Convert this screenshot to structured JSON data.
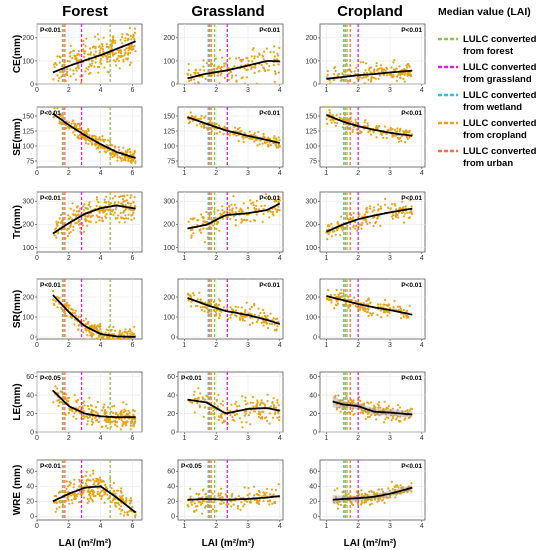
{
  "figure": {
    "columns": [
      "Forest",
      "Grassland",
      "Cropland"
    ],
    "xlabel": "LAI (m²/m²)",
    "legend": {
      "title": "Median value (LAI)",
      "entries": [
        {
          "line1": "LULC converted",
          "line2": "from forest",
          "color": "#8dc63f"
        },
        {
          "line1": "LULC converted",
          "line2": "from grassland",
          "color": "#e020e0"
        },
        {
          "line1": "LULC converted",
          "line2": "from wetland",
          "color": "#27c3e6"
        },
        {
          "line1": "LULC converted",
          "line2": "from cropland",
          "color": "#f0a020"
        },
        {
          "line1": "LULC converted",
          "line2": "from urban",
          "color": "#ff6a4a"
        }
      ]
    },
    "point_color": "#e8a317",
    "fit_color": "#000000"
  },
  "chart_data": [
    {
      "type": "scatter",
      "row": "CE(mm)",
      "column": "Forest",
      "p_text": "P<0.01",
      "xlim": [
        0,
        6.6
      ],
      "ylim": [
        0,
        260
      ],
      "xticks": [
        0,
        2,
        4,
        6
      ],
      "yticks": [
        0,
        100,
        200
      ],
      "fit": {
        "x": [
          1,
          2,
          3,
          4,
          5,
          6.2
        ],
        "y": [
          50,
          78,
          102,
          125,
          152,
          185
        ]
      },
      "spread": 40,
      "medians": {
        "forest": 4.6,
        "grassland": 2.8,
        "wetland": 1.6,
        "cropland": 1.65,
        "urban": 1.75
      }
    },
    {
      "type": "scatter",
      "row": "CE(mm)",
      "column": "Grassland",
      "p_text": "P<0.01",
      "xlim": [
        0.8,
        4.1
      ],
      "ylim": [
        0,
        260
      ],
      "xticks": [
        1,
        2,
        3,
        4
      ],
      "yticks": [
        0,
        100,
        200
      ],
      "fit": {
        "x": [
          1.1,
          1.7,
          2.3,
          3,
          3.6,
          4
        ],
        "y": [
          25,
          45,
          58,
          80,
          100,
          98
        ]
      },
      "spread": 35,
      "medians": {
        "forest": 1.95,
        "grassland": 2.35,
        "wetland": 1.75,
        "cropland": 1.85,
        "urban": 1.8
      }
    },
    {
      "type": "scatter",
      "row": "CE(mm)",
      "column": "Cropland",
      "p_text": "P<0.01",
      "xlim": [
        0.8,
        4.1
      ],
      "ylim": [
        0,
        260
      ],
      "xticks": [
        1,
        2,
        3,
        4
      ],
      "yticks": [
        0,
        100,
        200
      ],
      "fit": {
        "x": [
          1,
          1.5,
          2,
          2.5,
          3,
          3.7
        ],
        "y": [
          22,
          30,
          38,
          43,
          50,
          58
        ]
      },
      "spread": 22,
      "medians": {
        "forest": 1.65,
        "grassland": 2,
        "wetland": 1.55,
        "cropland": 1.6,
        "urban": 1.75
      }
    },
    {
      "type": "scatter",
      "row": "SE(mm)",
      "column": "Forest",
      "p_text": "P<0.01",
      "xlim": [
        0,
        6.6
      ],
      "ylim": [
        65,
        165
      ],
      "xticks": [
        0,
        2,
        4,
        6
      ],
      "yticks": [
        75,
        100,
        125,
        150
      ],
      "fit": {
        "x": [
          1,
          2,
          3,
          4,
          5,
          6.2
        ],
        "y": [
          154,
          135,
          118,
          103,
          90,
          80
        ]
      },
      "spread": 6,
      "medians": {
        "forest": 4.6,
        "grassland": 2.8,
        "wetland": 1.6,
        "cropland": 1.65,
        "urban": 1.75
      }
    },
    {
      "type": "scatter",
      "row": "SE(mm)",
      "column": "Grassland",
      "p_text": "P<0.01",
      "xlim": [
        0.8,
        4.1
      ],
      "ylim": [
        65,
        165
      ],
      "xticks": [
        1,
        2,
        3,
        4
      ],
      "yticks": [
        75,
        100,
        125,
        150
      ],
      "fit": {
        "x": [
          1.1,
          1.7,
          2.3,
          3,
          3.6,
          4
        ],
        "y": [
          148,
          137,
          126,
          117,
          110,
          105
        ]
      },
      "spread": 6,
      "medians": {
        "forest": 1.95,
        "grassland": 2.35,
        "wetland": 1.75,
        "cropland": 1.85,
        "urban": 1.8
      }
    },
    {
      "type": "scatter",
      "row": "SE(mm)",
      "column": "Cropland",
      "p_text": "P<0.01",
      "xlim": [
        0.8,
        4.1
      ],
      "ylim": [
        65,
        165
      ],
      "xticks": [
        1,
        2,
        3,
        4
      ],
      "yticks": [
        75,
        100,
        125,
        150
      ],
      "fit": {
        "x": [
          1,
          1.5,
          2,
          2.5,
          3,
          3.7
        ],
        "y": [
          152,
          141,
          133,
          127,
          122,
          117
        ]
      },
      "spread": 6,
      "medians": {
        "forest": 1.65,
        "grassland": 2,
        "wetland": 1.55,
        "cropland": 1.6,
        "urban": 1.75
      }
    },
    {
      "type": "scatter",
      "row": "Tr(mm)",
      "column": "Forest",
      "p_text": "P<0.01",
      "xlim": [
        0,
        6.6
      ],
      "ylim": [
        80,
        340
      ],
      "xticks": [
        0,
        2,
        4,
        6
      ],
      "yticks": [
        100,
        200,
        300
      ],
      "fit": {
        "x": [
          1,
          2,
          3,
          4,
          5,
          6.2
        ],
        "y": [
          160,
          205,
          245,
          270,
          282,
          268
        ]
      },
      "spread": 30,
      "medians": {
        "forest": 4.6,
        "grassland": 2.8,
        "wetland": 1.6,
        "cropland": 1.65,
        "urban": 1.75
      }
    },
    {
      "type": "scatter",
      "row": "Tr(mm)",
      "column": "Grassland",
      "p_text": "P<0.01",
      "xlim": [
        0.8,
        4.1
      ],
      "ylim": [
        80,
        340
      ],
      "xticks": [
        1,
        2,
        3,
        4
      ],
      "yticks": [
        100,
        200,
        300
      ],
      "fit": {
        "x": [
          1.1,
          1.7,
          2.3,
          3,
          3.6,
          4
        ],
        "y": [
          182,
          198,
          240,
          248,
          262,
          290
        ]
      },
      "spread": 28,
      "medians": {
        "forest": 1.95,
        "grassland": 2.35,
        "wetland": 1.75,
        "cropland": 1.85,
        "urban": 1.8
      }
    },
    {
      "type": "scatter",
      "row": "Tr(mm)",
      "column": "Cropland",
      "p_text": "P<0.01",
      "xlim": [
        0.8,
        4.1
      ],
      "ylim": [
        80,
        340
      ],
      "xticks": [
        1,
        2,
        3,
        4
      ],
      "yticks": [
        100,
        200,
        300
      ],
      "fit": {
        "x": [
          1,
          1.5,
          2,
          2.5,
          3,
          3.7
        ],
        "y": [
          168,
          198,
          222,
          238,
          252,
          268
        ]
      },
      "spread": 22,
      "medians": {
        "forest": 1.65,
        "grassland": 2,
        "wetland": 1.55,
        "cropland": 1.6,
        "urban": 1.75
      }
    },
    {
      "type": "scatter",
      "row": "SR(mm)",
      "column": "Forest",
      "p_text": "P<0.01",
      "xlim": [
        0,
        6.6
      ],
      "ylim": [
        -10,
        290
      ],
      "xticks": [
        0,
        2,
        4,
        6
      ],
      "yticks": [
        0,
        100,
        200
      ],
      "fit": {
        "x": [
          1,
          2,
          3,
          4,
          5,
          6.2
        ],
        "y": [
          210,
          125,
          55,
          15,
          3,
          0
        ]
      },
      "spread": 22,
      "medians": {
        "forest": 4.6,
        "grassland": 2.8,
        "wetland": 1.6,
        "cropland": 1.65,
        "urban": 1.75
      }
    },
    {
      "type": "scatter",
      "row": "SR(mm)",
      "column": "Grassland",
      "p_text": "P<0.01",
      "xlim": [
        0.8,
        4.1
      ],
      "ylim": [
        -10,
        290
      ],
      "xticks": [
        1,
        2,
        3,
        4
      ],
      "yticks": [
        0,
        100,
        200
      ],
      "fit": {
        "x": [
          1.1,
          1.7,
          2.3,
          3,
          3.6,
          4
        ],
        "y": [
          195,
          160,
          130,
          110,
          85,
          65
        ]
      },
      "spread": 22,
      "medians": {
        "forest": 1.95,
        "grassland": 2.35,
        "wetland": 1.75,
        "cropland": 1.85,
        "urban": 1.8
      }
    },
    {
      "type": "scatter",
      "row": "SR(mm)",
      "column": "Cropland",
      "p_text": "P<0.01",
      "xlim": [
        0.8,
        4.1
      ],
      "ylim": [
        -10,
        290
      ],
      "xticks": [
        1,
        2,
        3,
        4
      ],
      "yticks": [
        0,
        100,
        200
      ],
      "fit": {
        "x": [
          1,
          1.5,
          2,
          2.5,
          3,
          3.7
        ],
        "y": [
          205,
          185,
          165,
          148,
          135,
          112
        ]
      },
      "spread": 22,
      "medians": {
        "forest": 1.65,
        "grassland": 2,
        "wetland": 1.55,
        "cropland": 1.6,
        "urban": 1.75
      }
    },
    {
      "type": "scatter",
      "row": "LE(mm)",
      "column": "Forest",
      "p_text": "P<0.05",
      "xlim": [
        0,
        6.6
      ],
      "ylim": [
        0,
        65
      ],
      "xticks": [
        0,
        2,
        4,
        6
      ],
      "yticks": [
        0,
        20,
        40,
        60
      ],
      "fit": {
        "x": [
          1,
          2,
          3,
          4,
          5,
          6.2
        ],
        "y": [
          45,
          28,
          20,
          17,
          16,
          16
        ]
      },
      "spread": 6,
      "medians": {
        "forest": 4.6,
        "grassland": 2.8,
        "wetland": 1.6,
        "cropland": 1.65,
        "urban": 1.75
      }
    },
    {
      "type": "scatter",
      "row": "LE(mm)",
      "column": "Grassland",
      "p_text": "P<0.01",
      "xlim": [
        0.8,
        4.1
      ],
      "ylim": [
        0,
        65
      ],
      "xticks": [
        1,
        2,
        3,
        4
      ],
      "yticks": [
        0,
        20,
        40,
        60
      ],
      "fit": {
        "x": [
          1.1,
          1.7,
          2.3,
          3,
          3.6,
          4
        ],
        "y": [
          35,
          32,
          20,
          25,
          26,
          23
        ]
      },
      "spread": 7,
      "medians": {
        "forest": 1.95,
        "grassland": 2.35,
        "wetland": 1.75,
        "cropland": 1.85,
        "urban": 1.8
      }
    },
    {
      "type": "scatter",
      "row": "LE(mm)",
      "column": "Cropland",
      "p_text": "P<0.01",
      "xlim": [
        0.8,
        4.1
      ],
      "ylim": [
        0,
        65
      ],
      "xticks": [
        1,
        2,
        3,
        4
      ],
      "yticks": [
        0,
        20,
        40,
        60
      ],
      "fit": {
        "x": [
          1.2,
          1.5,
          2,
          2.5,
          3,
          3.7
        ],
        "y": [
          33,
          30,
          28,
          22,
          21,
          19
        ]
      },
      "spread": 5,
      "band": true,
      "medians": {
        "forest": 1.65,
        "grassland": 2,
        "wetland": 1.55,
        "cropland": 1.6,
        "urban": 1.75
      }
    },
    {
      "type": "scatter",
      "row": "WRE (mm)",
      "column": "Forest",
      "p_text": "P<0.01",
      "xlim": [
        0,
        6.6
      ],
      "ylim": [
        -5,
        75
      ],
      "xticks": [
        0,
        2,
        4,
        6
      ],
      "yticks": [
        0,
        20,
        40,
        60
      ],
      "fit": {
        "x": [
          1,
          2,
          3,
          4,
          5,
          6.2
        ],
        "y": [
          20,
          30,
          38,
          40,
          25,
          5
        ]
      },
      "spread": 9,
      "medians": {
        "forest": 4.6,
        "grassland": 2.8,
        "wetland": 1.6,
        "cropland": 1.65,
        "urban": 1.75
      }
    },
    {
      "type": "scatter",
      "row": "WRE (mm)",
      "column": "Grassland",
      "p_text": "P<0.05",
      "xlim": [
        0.8,
        4.1
      ],
      "ylim": [
        -5,
        75
      ],
      "xticks": [
        1,
        2,
        3,
        4
      ],
      "yticks": [
        0,
        20,
        40,
        60
      ],
      "fit": {
        "x": [
          1.1,
          1.7,
          2.3,
          3,
          3.6,
          4
        ],
        "y": [
          22,
          23,
          22,
          23,
          25,
          27
        ]
      },
      "spread": 7,
      "medians": {
        "forest": 1.95,
        "grassland": 2.35,
        "wetland": 1.75,
        "cropland": 1.85,
        "urban": 1.8
      }
    },
    {
      "type": "scatter",
      "row": "WRE (mm)",
      "column": "Cropland",
      "p_text": "P<0.01",
      "xlim": [
        0.8,
        4.1
      ],
      "ylim": [
        -5,
        75
      ],
      "xticks": [
        1,
        2,
        3,
        4
      ],
      "yticks": [
        0,
        20,
        40,
        60
      ],
      "fit": {
        "x": [
          1.2,
          1.5,
          2,
          2.5,
          3,
          3.7
        ],
        "y": [
          22,
          23,
          24,
          26,
          30,
          38
        ]
      },
      "spread": 5,
      "band": true,
      "medians": {
        "forest": 1.65,
        "grassland": 2,
        "wetland": 1.55,
        "cropland": 1.6,
        "urban": 1.75
      }
    }
  ]
}
